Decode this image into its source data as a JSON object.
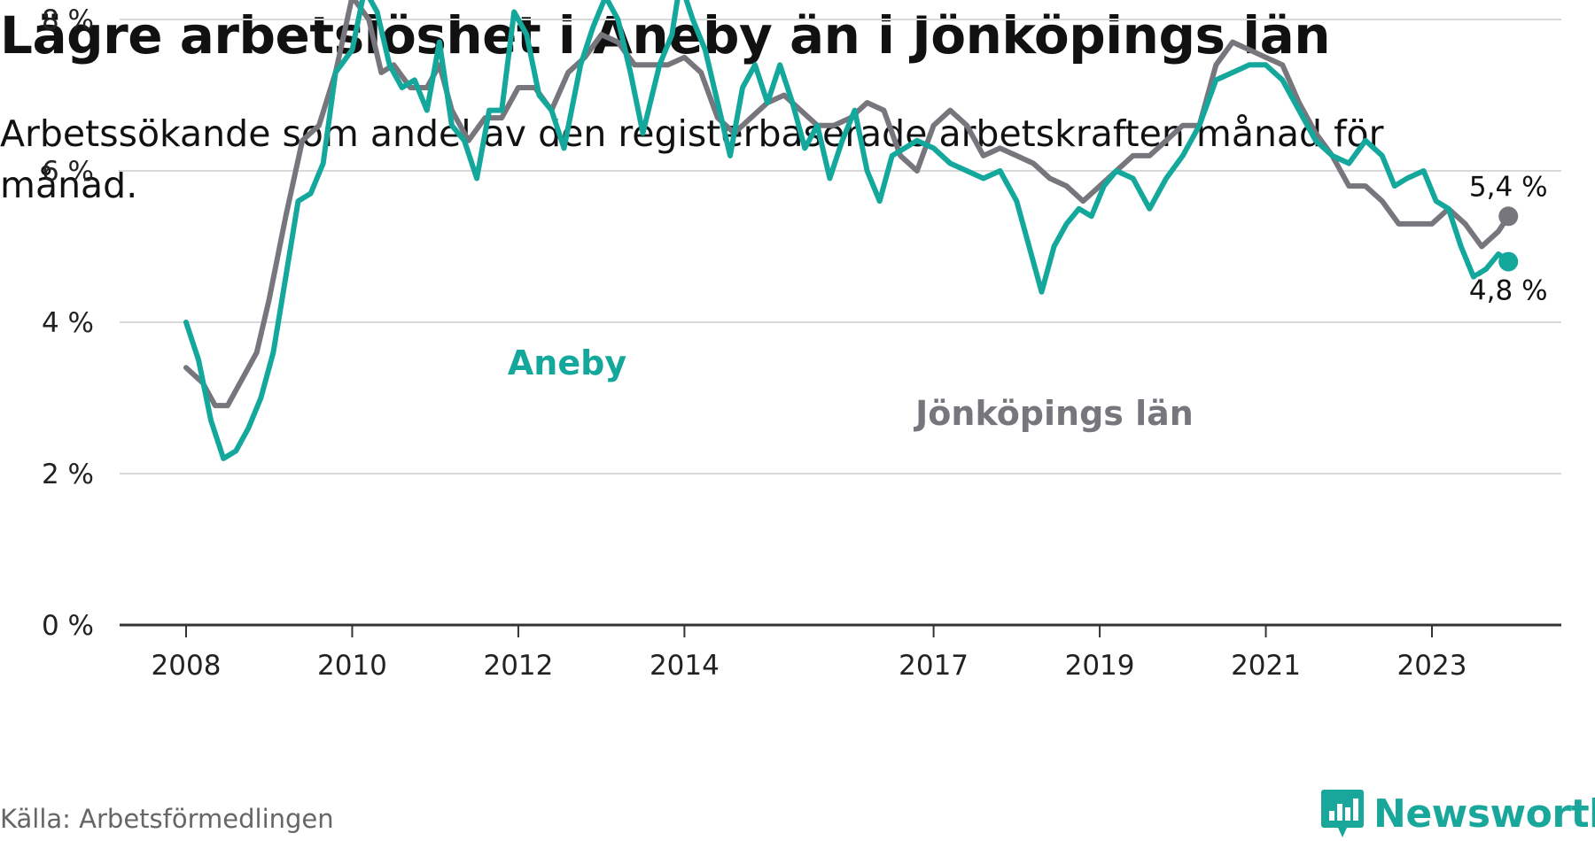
{
  "header": {
    "title": "Lägre arbetslöshet i Aneby än i Jönköpings län",
    "subtitle": "Arbetssökande som andel av den registerbaserade arbetskraften månad för månad."
  },
  "footer": {
    "source": "Källa: Arbetsförmedlingen",
    "brand": "Newsworthy"
  },
  "colors": {
    "aneby": "#14a89c",
    "lan": "#77767d",
    "grid": "#d9d9d9",
    "axis": "#333333",
    "brand": "#1aa79b"
  },
  "chart_data": {
    "type": "line",
    "title": "Lägre arbetslöshet i Aneby än i Jönköpings län",
    "xlabel": "",
    "ylabel": "",
    "ylim": [
      0,
      8.7
    ],
    "xlim": [
      2007.2,
      2025.1
    ],
    "x_ticks": [
      2008,
      2010,
      2012,
      2014,
      2017,
      2019,
      2021,
      2023
    ],
    "x_tick_labels": [
      "2008",
      "2010",
      "2012",
      "2014",
      "2017",
      "2019",
      "2021",
      "2023"
    ],
    "y_ticks": [
      0,
      2,
      4,
      6,
      8
    ],
    "y_tick_labels": [
      "0 %",
      "2 %",
      "4 %",
      "6 %",
      "8 %"
    ],
    "grid": true,
    "series": [
      {
        "name": "Jönköpings län",
        "label": "Jönköpings län",
        "end_label": "5,4 %",
        "points": [
          [
            2008.0,
            3.4
          ],
          [
            2008.2,
            3.2
          ],
          [
            2008.35,
            2.9
          ],
          [
            2008.5,
            2.9
          ],
          [
            2008.7,
            3.3
          ],
          [
            2008.85,
            3.6
          ],
          [
            2009.0,
            4.3
          ],
          [
            2009.2,
            5.4
          ],
          [
            2009.4,
            6.4
          ],
          [
            2009.6,
            6.6
          ],
          [
            2009.8,
            7.3
          ],
          [
            2010.0,
            8.3
          ],
          [
            2010.2,
            8.0
          ],
          [
            2010.35,
            7.3
          ],
          [
            2010.5,
            7.4
          ],
          [
            2010.7,
            7.1
          ],
          [
            2010.9,
            7.1
          ],
          [
            2011.05,
            7.4
          ],
          [
            2011.2,
            6.8
          ],
          [
            2011.4,
            6.4
          ],
          [
            2011.6,
            6.7
          ],
          [
            2011.8,
            6.7
          ],
          [
            2012.0,
            7.1
          ],
          [
            2012.2,
            7.1
          ],
          [
            2012.4,
            6.8
          ],
          [
            2012.6,
            7.3
          ],
          [
            2012.8,
            7.5
          ],
          [
            2013.0,
            7.8
          ],
          [
            2013.2,
            7.7
          ],
          [
            2013.4,
            7.4
          ],
          [
            2013.6,
            7.4
          ],
          [
            2013.8,
            7.4
          ],
          [
            2014.0,
            7.5
          ],
          [
            2014.2,
            7.3
          ],
          [
            2014.4,
            6.7
          ],
          [
            2014.6,
            6.5
          ],
          [
            2014.8,
            6.7
          ],
          [
            2015.0,
            6.9
          ],
          [
            2015.2,
            7.0
          ],
          [
            2015.4,
            6.8
          ],
          [
            2015.6,
            6.6
          ],
          [
            2015.8,
            6.6
          ],
          [
            2016.0,
            6.7
          ],
          [
            2016.2,
            6.9
          ],
          [
            2016.4,
            6.8
          ],
          [
            2016.6,
            6.2
          ],
          [
            2016.8,
            6.0
          ],
          [
            2017.0,
            6.6
          ],
          [
            2017.2,
            6.8
          ],
          [
            2017.4,
            6.6
          ],
          [
            2017.6,
            6.2
          ],
          [
            2017.8,
            6.3
          ],
          [
            2018.0,
            6.2
          ],
          [
            2018.2,
            6.1
          ],
          [
            2018.4,
            5.9
          ],
          [
            2018.6,
            5.8
          ],
          [
            2018.8,
            5.6
          ],
          [
            2019.0,
            5.8
          ],
          [
            2019.2,
            6.0
          ],
          [
            2019.4,
            6.2
          ],
          [
            2019.6,
            6.2
          ],
          [
            2019.8,
            6.4
          ],
          [
            2020.0,
            6.6
          ],
          [
            2020.2,
            6.6
          ],
          [
            2020.4,
            7.4
          ],
          [
            2020.6,
            7.7
          ],
          [
            2020.8,
            7.6
          ],
          [
            2021.0,
            7.5
          ],
          [
            2021.2,
            7.4
          ],
          [
            2021.4,
            6.9
          ],
          [
            2021.6,
            6.5
          ],
          [
            2021.8,
            6.2
          ],
          [
            2022.0,
            5.8
          ],
          [
            2022.2,
            5.8
          ],
          [
            2022.4,
            5.6
          ],
          [
            2022.6,
            5.3
          ],
          [
            2022.8,
            5.3
          ],
          [
            2023.0,
            5.3
          ],
          [
            2023.2,
            5.5
          ],
          [
            2023.4,
            5.3
          ],
          [
            2023.6,
            5.0
          ],
          [
            2023.8,
            5.2
          ],
          [
            2023.92,
            5.4
          ]
        ]
      },
      {
        "name": "Aneby",
        "label": "Aneby",
        "end_label": "4,8 %",
        "points": [
          [
            2008.0,
            4.0
          ],
          [
            2008.15,
            3.5
          ],
          [
            2008.3,
            2.7
          ],
          [
            2008.45,
            2.2
          ],
          [
            2008.6,
            2.3
          ],
          [
            2008.75,
            2.6
          ],
          [
            2008.9,
            3.0
          ],
          [
            2009.05,
            3.6
          ],
          [
            2009.2,
            4.6
          ],
          [
            2009.35,
            5.6
          ],
          [
            2009.5,
            5.7
          ],
          [
            2009.65,
            6.1
          ],
          [
            2009.8,
            7.3
          ],
          [
            2010.0,
            7.6
          ],
          [
            2010.15,
            8.4
          ],
          [
            2010.3,
            8.1
          ],
          [
            2010.45,
            7.4
          ],
          [
            2010.6,
            7.1
          ],
          [
            2010.75,
            7.2
          ],
          [
            2010.9,
            6.8
          ],
          [
            2011.05,
            7.7
          ],
          [
            2011.2,
            6.6
          ],
          [
            2011.35,
            6.4
          ],
          [
            2011.5,
            5.9
          ],
          [
            2011.65,
            6.8
          ],
          [
            2011.8,
            6.8
          ],
          [
            2011.95,
            8.1
          ],
          [
            2012.1,
            7.8
          ],
          [
            2012.25,
            7.0
          ],
          [
            2012.4,
            6.8
          ],
          [
            2012.55,
            6.3
          ],
          [
            2012.75,
            7.4
          ],
          [
            2012.9,
            7.9
          ],
          [
            2013.05,
            8.3
          ],
          [
            2013.2,
            8.0
          ],
          [
            2013.35,
            7.3
          ],
          [
            2013.5,
            6.5
          ],
          [
            2013.7,
            7.4
          ],
          [
            2013.85,
            7.8
          ],
          [
            2013.95,
            8.5
          ],
          [
            2014.1,
            8.0
          ],
          [
            2014.25,
            7.6
          ],
          [
            2014.4,
            6.9
          ],
          [
            2014.55,
            6.2
          ],
          [
            2014.7,
            7.1
          ],
          [
            2014.85,
            7.4
          ],
          [
            2015.0,
            6.9
          ],
          [
            2015.15,
            7.4
          ],
          [
            2015.3,
            6.9
          ],
          [
            2015.45,
            6.3
          ],
          [
            2015.6,
            6.6
          ],
          [
            2015.75,
            5.9
          ],
          [
            2015.9,
            6.4
          ],
          [
            2016.05,
            6.8
          ],
          [
            2016.2,
            6.0
          ],
          [
            2016.35,
            5.6
          ],
          [
            2016.5,
            6.2
          ],
          [
            2016.65,
            6.3
          ],
          [
            2016.8,
            6.4
          ],
          [
            2017.0,
            6.3
          ],
          [
            2017.2,
            6.1
          ],
          [
            2017.4,
            6.0
          ],
          [
            2017.6,
            5.9
          ],
          [
            2017.8,
            6.0
          ],
          [
            2018.0,
            5.6
          ],
          [
            2018.15,
            5.0
          ],
          [
            2018.3,
            4.4
          ],
          [
            2018.45,
            5.0
          ],
          [
            2018.6,
            5.3
          ],
          [
            2018.75,
            5.5
          ],
          [
            2018.9,
            5.4
          ],
          [
            2019.05,
            5.8
          ],
          [
            2019.2,
            6.0
          ],
          [
            2019.4,
            5.9
          ],
          [
            2019.6,
            5.5
          ],
          [
            2019.8,
            5.9
          ],
          [
            2020.0,
            6.2
          ],
          [
            2020.2,
            6.6
          ],
          [
            2020.4,
            7.2
          ],
          [
            2020.6,
            7.3
          ],
          [
            2020.8,
            7.4
          ],
          [
            2021.0,
            7.4
          ],
          [
            2021.2,
            7.2
          ],
          [
            2021.4,
            6.8
          ],
          [
            2021.6,
            6.4
          ],
          [
            2021.8,
            6.2
          ],
          [
            2022.0,
            6.1
          ],
          [
            2022.2,
            6.4
          ],
          [
            2022.4,
            6.2
          ],
          [
            2022.55,
            5.8
          ],
          [
            2022.7,
            5.9
          ],
          [
            2022.9,
            6.0
          ],
          [
            2023.05,
            5.6
          ],
          [
            2023.2,
            5.5
          ],
          [
            2023.35,
            5.0
          ],
          [
            2023.5,
            4.6
          ],
          [
            2023.65,
            4.7
          ],
          [
            2023.8,
            4.9
          ],
          [
            2023.92,
            4.8
          ]
        ]
      }
    ]
  }
}
